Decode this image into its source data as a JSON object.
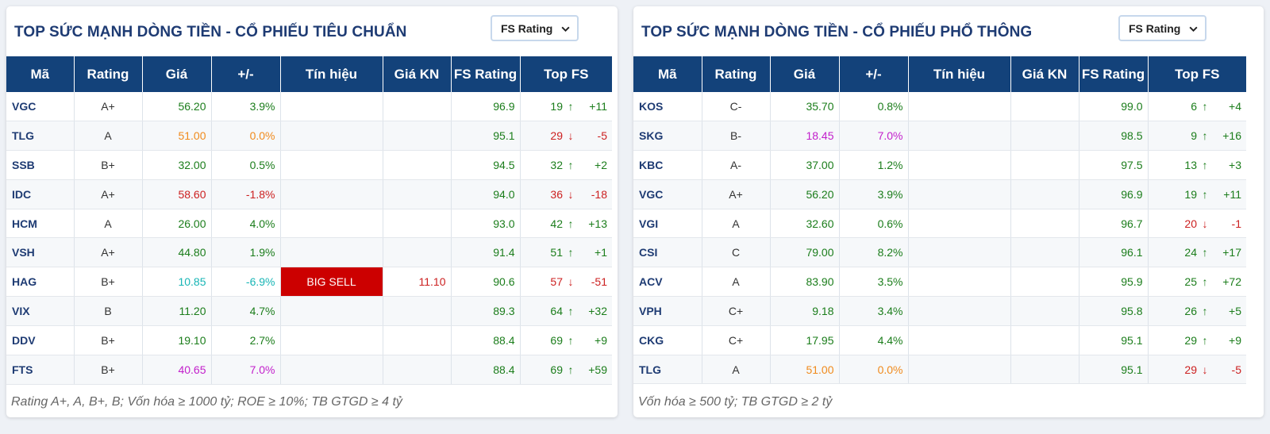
{
  "panels": [
    {
      "title": "TOP SỨC MẠNH DÒNG TIỀN - CỔ PHIẾU TIÊU CHUẨN",
      "select_label": "FS Rating",
      "footer": "Rating A+, A, B+, B; Vốn hóa ≥ 1000 tỷ; ROE ≥ 10%; TB GTGD ≥ 4 tỷ",
      "headers": [
        "Mã",
        "Rating",
        "Giá",
        "+/-",
        "Tín hiệu",
        "Giá KN",
        "FS Rating",
        "Top FS"
      ],
      "rows": [
        {
          "code": "VGC",
          "rating": "A+",
          "price": "56.20",
          "change": "3.9%",
          "color": "green",
          "signal": "",
          "signal_price": "",
          "fs": "96.9",
          "rank": "19",
          "dir": "up",
          "diff": "+11"
        },
        {
          "code": "TLG",
          "rating": "A",
          "price": "51.00",
          "change": "0.0%",
          "color": "orange",
          "signal": "",
          "signal_price": "",
          "fs": "95.1",
          "rank": "29",
          "dir": "down",
          "diff": "-5"
        },
        {
          "code": "SSB",
          "rating": "B+",
          "price": "32.00",
          "change": "0.5%",
          "color": "green",
          "signal": "",
          "signal_price": "",
          "fs": "94.5",
          "rank": "32",
          "dir": "up",
          "diff": "+2"
        },
        {
          "code": "IDC",
          "rating": "A+",
          "price": "58.60",
          "change": "-1.8%",
          "color": "red",
          "signal": "",
          "signal_price": "",
          "fs": "94.0",
          "rank": "36",
          "dir": "down",
          "diff": "-18"
        },
        {
          "code": "HCM",
          "rating": "A",
          "price": "26.00",
          "change": "4.0%",
          "color": "green",
          "signal": "",
          "signal_price": "",
          "fs": "93.0",
          "rank": "42",
          "dir": "up",
          "diff": "+13"
        },
        {
          "code": "VSH",
          "rating": "A+",
          "price": "44.80",
          "change": "1.9%",
          "color": "green",
          "signal": "",
          "signal_price": "",
          "fs": "91.4",
          "rank": "51",
          "dir": "up",
          "diff": "+1"
        },
        {
          "code": "HAG",
          "rating": "B+",
          "price": "10.85",
          "change": "-6.9%",
          "color": "cyan",
          "signal": "BIG SELL",
          "signal_price": "11.10",
          "fs": "90.6",
          "rank": "57",
          "dir": "down",
          "diff": "-51"
        },
        {
          "code": "VIX",
          "rating": "B",
          "price": "11.20",
          "change": "4.7%",
          "color": "green",
          "signal": "",
          "signal_price": "",
          "fs": "89.3",
          "rank": "64",
          "dir": "up",
          "diff": "+32"
        },
        {
          "code": "DDV",
          "rating": "B+",
          "price": "19.10",
          "change": "2.7%",
          "color": "green",
          "signal": "",
          "signal_price": "",
          "fs": "88.4",
          "rank": "69",
          "dir": "up",
          "diff": "+9"
        },
        {
          "code": "FTS",
          "rating": "B+",
          "price": "40.65",
          "change": "7.0%",
          "color": "magenta",
          "signal": "",
          "signal_price": "",
          "fs": "88.4",
          "rank": "69",
          "dir": "up",
          "diff": "+59"
        }
      ]
    },
    {
      "title": "TOP SỨC MẠNH DÒNG TIỀN - CỔ PHIẾU PHỔ THÔNG",
      "select_label": "FS Rating",
      "footer": "Vốn hóa ≥ 500 tỷ; TB GTGD ≥ 2 tỷ",
      "headers": [
        "Mã",
        "Rating",
        "Giá",
        "+/-",
        "Tín hiệu",
        "Giá KN",
        "FS Rating",
        "Top FS"
      ],
      "rows": [
        {
          "code": "KOS",
          "rating": "C-",
          "price": "35.70",
          "change": "0.8%",
          "color": "green",
          "signal": "",
          "signal_price": "",
          "fs": "99.0",
          "rank": "6",
          "dir": "up",
          "diff": "+4"
        },
        {
          "code": "SKG",
          "rating": "B-",
          "price": "18.45",
          "change": "7.0%",
          "color": "magenta",
          "signal": "",
          "signal_price": "",
          "fs": "98.5",
          "rank": "9",
          "dir": "up",
          "diff": "+16"
        },
        {
          "code": "KBC",
          "rating": "A-",
          "price": "37.00",
          "change": "1.2%",
          "color": "green",
          "signal": "",
          "signal_price": "",
          "fs": "97.5",
          "rank": "13",
          "dir": "up",
          "diff": "+3"
        },
        {
          "code": "VGC",
          "rating": "A+",
          "price": "56.20",
          "change": "3.9%",
          "color": "green",
          "signal": "",
          "signal_price": "",
          "fs": "96.9",
          "rank": "19",
          "dir": "up",
          "diff": "+11"
        },
        {
          "code": "VGI",
          "rating": "A",
          "price": "32.60",
          "change": "0.6%",
          "color": "green",
          "signal": "",
          "signal_price": "",
          "fs": "96.7",
          "rank": "20",
          "dir": "down",
          "diff": "-1"
        },
        {
          "code": "CSI",
          "rating": "C",
          "price": "79.00",
          "change": "8.2%",
          "color": "green",
          "signal": "",
          "signal_price": "",
          "fs": "96.1",
          "rank": "24",
          "dir": "up",
          "diff": "+17"
        },
        {
          "code": "ACV",
          "rating": "A",
          "price": "83.90",
          "change": "3.5%",
          "color": "green",
          "signal": "",
          "signal_price": "",
          "fs": "95.9",
          "rank": "25",
          "dir": "up",
          "diff": "+72"
        },
        {
          "code": "VPH",
          "rating": "C+",
          "price": "9.18",
          "change": "3.4%",
          "color": "green",
          "signal": "",
          "signal_price": "",
          "fs": "95.8",
          "rank": "26",
          "dir": "up",
          "diff": "+5"
        },
        {
          "code": "CKG",
          "rating": "C+",
          "price": "17.95",
          "change": "4.4%",
          "color": "green",
          "signal": "",
          "signal_price": "",
          "fs": "95.1",
          "rank": "29",
          "dir": "up",
          "diff": "+9"
        },
        {
          "code": "TLG",
          "rating": "A",
          "price": "51.00",
          "change": "0.0%",
          "color": "orange",
          "signal": "",
          "signal_price": "",
          "fs": "95.1",
          "rank": "29",
          "dir": "down",
          "diff": "-5"
        }
      ]
    }
  ]
}
